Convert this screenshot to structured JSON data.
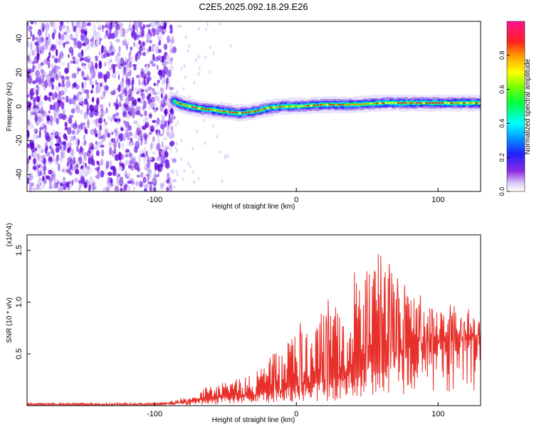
{
  "figure": {
    "title": "C2E5.2025.092.18.29.E26"
  },
  "chart_data": [
    {
      "type": "heatmap",
      "title": "C2E5.2025.092.18.29.E26",
      "xlabel": "Height of straight line (km)",
      "ylabel": "Frequency (Hz)",
      "xlim": [
        -190,
        130
      ],
      "ylim": [
        -50,
        50
      ],
      "xticks": [
        -100,
        0,
        100
      ],
      "xtick_labels": [
        "-100",
        "0",
        "100"
      ],
      "yticks": [
        -40,
        -20,
        0,
        20,
        40
      ],
      "ytick_labels": [
        "-40",
        "-20",
        "0",
        "20",
        "40"
      ],
      "colorbar": {
        "label": "Normalized spectral amplitude",
        "range": [
          0.0,
          1.0
        ],
        "ticks": [
          0.0,
          0.2,
          0.4,
          0.6,
          0.8
        ],
        "tick_labels": [
          "0.0",
          "0.2",
          "0.4",
          "0.6",
          "0.8"
        ]
      },
      "noise_region_end_km": -86,
      "ridge_path": {
        "x": [
          -86,
          -80,
          -70,
          -60,
          -50,
          -40,
          -30,
          -20,
          -10,
          0,
          20,
          40,
          60,
          80,
          100,
          130
        ],
        "y": [
          3,
          1,
          -1,
          -2,
          -3,
          -4,
          -3,
          -1,
          0,
          0,
          1,
          1,
          2,
          2,
          2,
          2
        ]
      },
      "grid": false
    },
    {
      "type": "line",
      "xlabel": "Height of straight line (km)",
      "ylabel": "SNR (10 * v/v)",
      "y_scale_note": "(x10^4)",
      "xlim": [
        -190,
        130
      ],
      "ylim": [
        0,
        1.65
      ],
      "xticks": [
        -100,
        0,
        100
      ],
      "xtick_labels": [
        "-100",
        "0",
        "100"
      ],
      "yticks": [
        0.5,
        1.0,
        1.5
      ],
      "ytick_labels": [
        "0.5",
        "1.0",
        "1.5"
      ],
      "line_color": "#e8302a",
      "series": [
        {
          "name": "SNR",
          "x": [
            -190,
            -150,
            -100,
            -90,
            -80,
            -70,
            -60,
            -50,
            -40,
            -30,
            -20,
            -10,
            0,
            10,
            20,
            30,
            40,
            50,
            60,
            70,
            80,
            90,
            100,
            110,
            120,
            130
          ],
          "upper": [
            0.03,
            0.03,
            0.03,
            0.04,
            0.08,
            0.15,
            0.22,
            0.25,
            0.3,
            0.38,
            0.5,
            0.62,
            0.75,
            0.82,
            1.0,
            1.15,
            1.35,
            1.3,
            1.48,
            1.25,
            1.12,
            1.05,
            1.0,
            0.95,
            0.9,
            0.85
          ],
          "lower": [
            0.01,
            0.01,
            0.01,
            0.02,
            0.03,
            0.05,
            0.06,
            0.08,
            0.1,
            0.1,
            0.12,
            0.15,
            0.18,
            0.2,
            0.22,
            0.25,
            0.3,
            0.4,
            0.45,
            0.5,
            0.55,
            0.6,
            0.62,
            0.64,
            0.66,
            0.68
          ]
        }
      ],
      "grid": false
    }
  ]
}
